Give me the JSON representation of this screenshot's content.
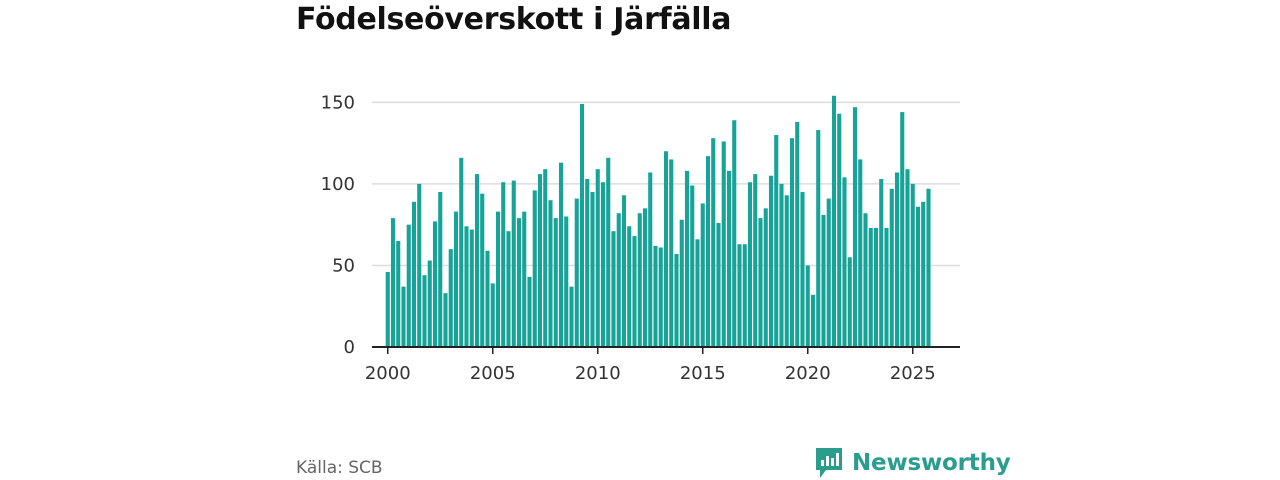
{
  "title": "Födelseöverskott i Järfälla",
  "source": "Källa: SCB",
  "brand": {
    "name": "Newsworthy",
    "icon": "newsworthy-logo-icon"
  },
  "colors": {
    "bar": "#17a398",
    "grid": "#dddddd",
    "axis": "#222222",
    "brand": "#2a9d8f"
  },
  "chart_data": {
    "type": "bar",
    "title": "Födelseöverskott i Järfälla",
    "xlabel": "",
    "ylabel": "",
    "ylim": [
      0,
      160
    ],
    "yticks": [
      0,
      50,
      100,
      150
    ],
    "xticks": [
      2000,
      2005,
      2010,
      2015,
      2020,
      2025
    ],
    "xlim": [
      1999.25,
      2027.25
    ],
    "grid": true,
    "series": [
      {
        "name": "Födelseöverskott",
        "start_year": 2000,
        "values": [
          46,
          79,
          65,
          37,
          75,
          89,
          100,
          44,
          53,
          77,
          95,
          33,
          60,
          83,
          116,
          74,
          72,
          106,
          94,
          59,
          39,
          83,
          101,
          71,
          102,
          79,
          83,
          43,
          96,
          106,
          109,
          90,
          79,
          113,
          80,
          37,
          91,
          149,
          103,
          95,
          109,
          101,
          116,
          71,
          82,
          93,
          74,
          68,
          82,
          85,
          107,
          62,
          61,
          120,
          115,
          57,
          78,
          108,
          99,
          66,
          88,
          117,
          128,
          76,
          126,
          108,
          139,
          63,
          63,
          101,
          106,
          79,
          85,
          105,
          130,
          100,
          93,
          128,
          138,
          95,
          50,
          32,
          133,
          81,
          91,
          154,
          143,
          104,
          55,
          147,
          115,
          82,
          73,
          73,
          103,
          73,
          97,
          107,
          144,
          109,
          100,
          86,
          89,
          97
        ]
      }
    ]
  }
}
